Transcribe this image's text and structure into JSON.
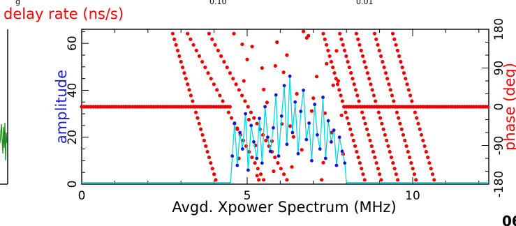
{
  "chart_data": {
    "type": "scatter",
    "title": "delay rate (ns/s)",
    "top_partial_labels": [
      "g",
      "0.10",
      "0.01"
    ],
    "corner_label": "06",
    "xlabel": "Avgd. Xpower Spectrum (MHz)",
    "ylabel_left": "amplitude",
    "ylabel_right": "phase (deg)",
    "xlim": [
      0,
      12.3
    ],
    "ylim_left": [
      0,
      66
    ],
    "ylim_right": [
      -180,
      180
    ],
    "x_ticks": [
      0,
      5,
      10
    ],
    "y_left_ticks": [
      0,
      20,
      40,
      60
    ],
    "y_right_ticks": [
      -180,
      -90,
      0,
      90,
      180
    ],
    "band_mhz": [
      4.5,
      8.0
    ],
    "colors": {
      "title": "#ff0000",
      "amplitude_label": "#1e1ecc",
      "phase_label": "#ff0000",
      "amplitude_line": "#00d8e0",
      "amplitude_points": "#1414d2",
      "phase_points": "#ee0000",
      "left_trace": "#1f8f1f",
      "frame": "#000000"
    },
    "series": [
      {
        "name": "amplitude",
        "axis": "left",
        "baseline": 0.6,
        "x": [
          4.55,
          4.62,
          4.7,
          4.78,
          4.86,
          4.95,
          5.03,
          5.12,
          5.2,
          5.29,
          5.37,
          5.45,
          5.54,
          5.62,
          5.7,
          5.79,
          5.87,
          5.95,
          6.04,
          6.12,
          6.2,
          6.29,
          6.37,
          6.45,
          6.54,
          6.62,
          6.7,
          6.79,
          6.87,
          6.95,
          7.04,
          7.12,
          7.2,
          7.29,
          7.37,
          7.45,
          7.54,
          7.62,
          7.7,
          7.79,
          7.87,
          7.95
        ],
        "values": [
          12,
          26,
          8,
          22,
          15,
          30,
          6,
          25,
          18,
          11,
          28,
          9,
          33,
          20,
          14,
          24,
          38,
          12,
          29,
          42,
          17,
          46,
          22,
          35,
          13,
          31,
          40,
          19,
          26,
          10,
          34,
          21,
          15,
          37,
          11,
          27,
          18,
          23,
          8,
          20,
          14,
          9
        ]
      },
      {
        "name": "phase",
        "axis": "right",
        "flat_phase": 0,
        "flat_segments": [
          [
            0,
            4.5
          ],
          [
            8.0,
            12.3
          ]
        ],
        "wrap_lines": [
          {
            "x_start": 2.75,
            "x_end": 4.05
          },
          {
            "x_start": 3.2,
            "x_end": 5.5
          },
          {
            "x_start": 3.85,
            "x_end": 6.2
          },
          {
            "x_start": 7.3,
            "x_end": 8.55
          },
          {
            "x_start": 7.8,
            "x_end": 9.05
          },
          {
            "x_start": 8.3,
            "x_end": 9.55
          },
          {
            "x_start": 8.85,
            "x_end": 10.1
          },
          {
            "x_start": 9.4,
            "x_end": 10.65
          }
        ],
        "scatter_x": [
          4.6,
          4.75,
          4.9,
          5.05,
          5.15,
          5.3,
          5.45,
          5.6,
          5.75,
          5.9,
          6.05,
          6.2,
          6.35,
          6.5,
          6.65,
          6.8,
          6.95,
          7.1,
          7.25,
          7.4,
          7.55,
          7.7,
          7.85,
          4.7,
          5.0,
          5.25,
          5.5,
          5.8,
          6.1,
          6.4,
          6.7,
          7.0,
          7.3,
          7.6,
          7.9,
          4.85,
          5.35,
          5.85,
          6.3,
          6.85,
          7.35,
          7.75
        ],
        "scatter_phase": [
          170,
          -120,
          60,
          -30,
          140,
          -160,
          90,
          10,
          -80,
          150,
          -40,
          120,
          -140,
          30,
          -100,
          160,
          -10,
          70,
          -170,
          100,
          -60,
          130,
          -20,
          -50,
          110,
          -90,
          40,
          -150,
          80,
          -70,
          175,
          20,
          -130,
          50,
          -110,
          145,
          -170,
          95,
          -45,
          165,
          -15,
          60
        ]
      }
    ],
    "left_panel": {
      "name": "green-trace",
      "visible_fraction": 0.02
    }
  }
}
